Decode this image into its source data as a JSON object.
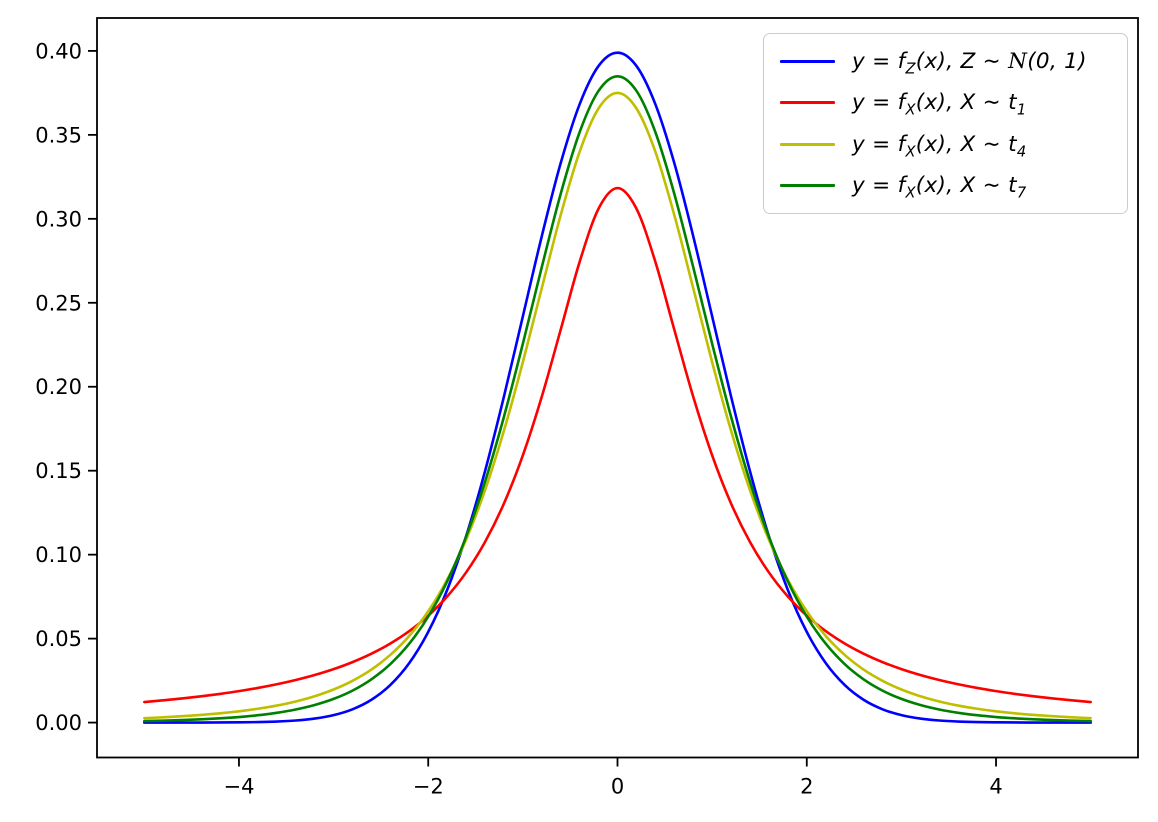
{
  "figure": {
    "background": "#ffffff",
    "axis_color": "#000000",
    "tick_label_color": "#000000"
  },
  "legend": {
    "position": "upper right",
    "border_color": "#cccccc",
    "background": "#ffffff"
  },
  "chart_data": {
    "type": "line",
    "title": "",
    "xlabel": "",
    "ylabel": "",
    "grid": false,
    "xlim": [
      -5.5,
      5.5
    ],
    "ylim": [
      -0.0208,
      0.4196
    ],
    "x_ticks": {
      "values": [
        -4,
        -2,
        0,
        2,
        4
      ],
      "labels": [
        "−4",
        "−2",
        "0",
        "2",
        "4"
      ]
    },
    "y_ticks": {
      "values": [
        0.0,
        0.05,
        0.1,
        0.15,
        0.2,
        0.25,
        0.3,
        0.35,
        0.4
      ],
      "labels": [
        "0.00",
        "0.05",
        "0.10",
        "0.15",
        "0.20",
        "0.25",
        "0.30",
        "0.35",
        "0.40"
      ]
    },
    "x": [
      -5.0,
      -4.8,
      -4.6,
      -4.4,
      -4.2,
      -4.0,
      -3.8,
      -3.6,
      -3.4,
      -3.2,
      -3.0,
      -2.8,
      -2.6,
      -2.4,
      -2.2,
      -2.0,
      -1.8,
      -1.6,
      -1.4,
      -1.2,
      -1.0,
      -0.8,
      -0.6,
      -0.4,
      -0.2,
      0.0,
      0.2,
      0.4,
      0.6,
      0.8,
      1.0,
      1.2,
      1.4,
      1.6,
      1.8,
      2.0,
      2.2,
      2.4,
      2.6,
      2.8,
      3.0,
      3.2,
      3.4,
      3.6,
      3.8,
      4.0,
      4.2,
      4.4,
      4.6,
      4.8,
      5.0
    ],
    "series": [
      {
        "name": "normal",
        "label": "y = f_Z(x), Z ∼ 𝒩(0, 1)",
        "color": "#0000ff",
        "peak": 0.3989,
        "values": [
          1.5e-06,
          4e-06,
          1e-05,
          2.5e-05,
          5.9e-05,
          0.000134,
          0.000292,
          0.000612,
          0.001232,
          0.002384,
          0.004432,
          0.007915,
          0.013583,
          0.022395,
          0.035475,
          0.053991,
          0.07895,
          0.110921,
          0.149727,
          0.194186,
          0.241971,
          0.289692,
          0.333225,
          0.36827,
          0.391043,
          0.398942,
          0.391043,
          0.36827,
          0.333225,
          0.289692,
          0.241971,
          0.194186,
          0.149727,
          0.110921,
          0.07895,
          0.053991,
          0.035475,
          0.022395,
          0.013583,
          0.007915,
          0.004432,
          0.002384,
          0.001232,
          0.000612,
          0.000292,
          0.000134,
          5.9e-05,
          2.5e-05,
          1e-05,
          4e-06,
          1.5e-06
        ]
      },
      {
        "name": "t1",
        "label": "y = f_X(x), X ∼ t_1",
        "color": "#ff0000",
        "peak": 0.3183,
        "values": [
          0.012243,
          0.013241,
          0.014364,
          0.015634,
          0.017077,
          0.018724,
          0.020616,
          0.022801,
          0.025343,
          0.02832,
          0.031831,
          0.036008,
          0.041019,
          0.047087,
          0.054505,
          0.063662,
          0.075073,
          0.089413,
          0.107537,
          0.130455,
          0.159155,
          0.194091,
          0.234051,
          0.274405,
          0.306068,
          0.31831,
          0.306068,
          0.274405,
          0.234051,
          0.194091,
          0.159155,
          0.130455,
          0.107537,
          0.089413,
          0.075073,
          0.063662,
          0.054505,
          0.047087,
          0.041019,
          0.036008,
          0.031831,
          0.02832,
          0.025343,
          0.022801,
          0.020616,
          0.018724,
          0.017077,
          0.015634,
          0.014364,
          0.013241,
          0.012243
        ]
      },
      {
        "name": "t4",
        "label": "y = f_X(x), X ∼ t_4",
        "color": "#bfbf00",
        "peak": 0.375,
        "values": [
          0.002645,
          0.00315,
          0.003775,
          0.004546,
          0.005498,
          0.006708,
          0.008218,
          0.010128,
          0.012569,
          0.015684,
          0.01969,
          0.024884,
          0.031558,
          0.040343,
          0.05164,
          0.066291,
          0.085087,
          0.108873,
          0.13838,
          0.173853,
          0.214663,
          0.258753,
          0.302319,
          0.339976,
          0.365787,
          0.375,
          0.365787,
          0.339976,
          0.302319,
          0.258753,
          0.214663,
          0.173853,
          0.13838,
          0.108873,
          0.085087,
          0.066291,
          0.05164,
          0.040343,
          0.031558,
          0.024884,
          0.01969,
          0.015684,
          0.012569,
          0.010128,
          0.008218,
          0.006708,
          0.005498,
          0.004546,
          0.003775,
          0.00315,
          0.002645
        ]
      },
      {
        "name": "t7",
        "label": "y = f_X(x), X ∼ t_7",
        "color": "#008000",
        "peak": 0.3849,
        "values": [
          0.000882,
          0.001134,
          0.001471,
          0.001915,
          0.002507,
          0.003302,
          0.004378,
          0.005823,
          0.007791,
          0.010464,
          0.014096,
          0.019033,
          0.025772,
          0.034847,
          0.047019,
          0.063098,
          0.084052,
          0.110639,
          0.143388,
          0.182123,
          0.225621,
          0.271248,
          0.31494,
          0.351631,
          0.376226,
          0.3849,
          0.376226,
          0.351631,
          0.31494,
          0.271248,
          0.225621,
          0.182123,
          0.143388,
          0.110639,
          0.084052,
          0.063098,
          0.047019,
          0.034847,
          0.025772,
          0.019033,
          0.014096,
          0.010464,
          0.007791,
          0.005823,
          0.004378,
          0.003302,
          0.002507,
          0.001915,
          0.001471,
          0.001134,
          0.000882
        ]
      }
    ]
  }
}
